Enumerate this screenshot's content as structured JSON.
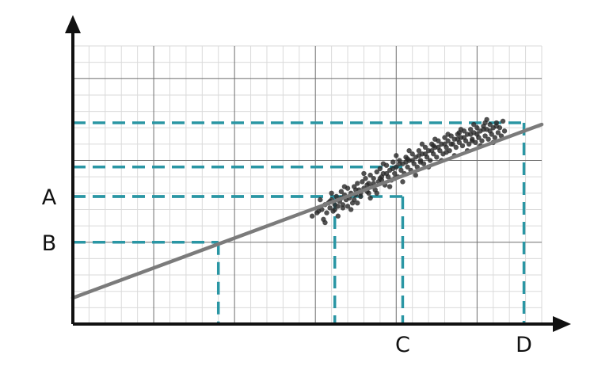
{
  "chart_data": {
    "type": "scatter",
    "title": "",
    "xlabel": "",
    "ylabel": "",
    "xlim": [
      0,
      29
    ],
    "ylim": [
      0,
      17
    ],
    "grid": true,
    "y_axis_labels": [
      "A",
      "B"
    ],
    "x_axis_labels": [
      "C",
      "D"
    ],
    "trend_line": {
      "x": [
        0,
        29
      ],
      "y": [
        1.6,
        12.2
      ]
    },
    "guides": [
      {
        "label": "B",
        "x": 9.0,
        "y": 5.0
      },
      {
        "label": "A",
        "x": 16.2,
        "y": 7.8
      },
      {
        "label": "C",
        "x": 20.4,
        "y": 7.8
      },
      {
        "label": "",
        "x": 20.4,
        "y": 9.6
      },
      {
        "label": "D",
        "x": 27.9,
        "y": 12.3
      }
    ],
    "points": [
      [
        14.8,
        6.6
      ],
      [
        15.2,
        6.9
      ],
      [
        15.4,
        7.0
      ],
      [
        15.5,
        6.4
      ],
      [
        15.6,
        7.3
      ],
      [
        15.7,
        6.8
      ],
      [
        15.8,
        7.4
      ],
      [
        15.9,
        7.1
      ],
      [
        16.0,
        7.6
      ],
      [
        16.1,
        6.9
      ],
      [
        16.2,
        7.3
      ],
      [
        16.3,
        7.8
      ],
      [
        16.4,
        7.2
      ],
      [
        16.5,
        7.5
      ],
      [
        16.6,
        8.1
      ],
      [
        16.7,
        7.3
      ],
      [
        16.8,
        7.9
      ],
      [
        16.9,
        7.6
      ],
      [
        17.0,
        8.3
      ],
      [
        17.1,
        7.7
      ],
      [
        17.2,
        8.0
      ],
      [
        17.3,
        7.4
      ],
      [
        17.4,
        8.4
      ],
      [
        17.5,
        7.9
      ],
      [
        17.6,
        8.6
      ],
      [
        17.7,
        8.2
      ],
      [
        17.8,
        7.8
      ],
      [
        17.9,
        8.7
      ],
      [
        18.0,
        8.3
      ],
      [
        18.1,
        8.9
      ],
      [
        18.2,
        8.1
      ],
      [
        18.3,
        8.6
      ],
      [
        18.4,
        9.1
      ],
      [
        18.5,
        8.4
      ],
      [
        18.6,
        8.9
      ],
      [
        18.7,
        8.2
      ],
      [
        18.8,
        9.3
      ],
      [
        18.9,
        8.7
      ],
      [
        19.0,
        9.5
      ],
      [
        19.1,
        8.8
      ],
      [
        19.2,
        9.2
      ],
      [
        19.3,
        8.5
      ],
      [
        19.4,
        9.7
      ],
      [
        19.5,
        9.0
      ],
      [
        19.6,
        9.4
      ],
      [
        19.7,
        8.8
      ],
      [
        19.8,
        9.9
      ],
      [
        19.9,
        9.2
      ],
      [
        20.0,
        9.6
      ],
      [
        20.1,
        9.0
      ],
      [
        20.2,
        10.0
      ],
      [
        20.3,
        9.4
      ],
      [
        20.4,
        9.8
      ],
      [
        20.5,
        9.2
      ],
      [
        20.6,
        10.2
      ],
      [
        20.7,
        9.6
      ],
      [
        20.8,
        10.0
      ],
      [
        20.9,
        9.4
      ],
      [
        21.0,
        10.4
      ],
      [
        21.1,
        9.8
      ],
      [
        21.2,
        10.2
      ],
      [
        21.3,
        9.6
      ],
      [
        21.4,
        10.6
      ],
      [
        21.5,
        10.0
      ],
      [
        21.6,
        10.4
      ],
      [
        21.7,
        9.8
      ],
      [
        21.8,
        10.8
      ],
      [
        21.9,
        10.2
      ],
      [
        22.0,
        10.6
      ],
      [
        22.1,
        10.0
      ],
      [
        22.2,
        11.0
      ],
      [
        22.3,
        10.4
      ],
      [
        22.4,
        10.8
      ],
      [
        22.5,
        10.2
      ],
      [
        22.6,
        11.2
      ],
      [
        22.7,
        10.6
      ],
      [
        22.8,
        11.0
      ],
      [
        22.9,
        10.4
      ],
      [
        23.0,
        11.4
      ],
      [
        23.1,
        10.8
      ],
      [
        23.2,
        11.2
      ],
      [
        23.3,
        10.6
      ],
      [
        23.4,
        11.5
      ],
      [
        23.5,
        11.0
      ],
      [
        23.6,
        11.3
      ],
      [
        23.7,
        10.8
      ],
      [
        23.8,
        11.6
      ],
      [
        23.9,
        11.1
      ],
      [
        24.0,
        11.4
      ],
      [
        24.1,
        10.9
      ],
      [
        24.2,
        11.8
      ],
      [
        24.3,
        11.2
      ],
      [
        24.4,
        11.6
      ],
      [
        24.5,
        11.0
      ],
      [
        24.6,
        11.9
      ],
      [
        24.7,
        11.3
      ],
      [
        24.8,
        11.7
      ],
      [
        24.9,
        11.1
      ],
      [
        25.0,
        12.0
      ],
      [
        25.1,
        11.4
      ],
      [
        25.2,
        11.8
      ],
      [
        25.3,
        11.2
      ],
      [
        25.4,
        12.1
      ],
      [
        25.5,
        11.5
      ],
      [
        25.6,
        11.9
      ],
      [
        25.7,
        11.3
      ],
      [
        25.8,
        12.2
      ],
      [
        25.9,
        11.6
      ],
      [
        26.0,
        12.0
      ],
      [
        26.1,
        11.4
      ],
      [
        26.2,
        12.3
      ],
      [
        26.3,
        11.7
      ],
      [
        26.4,
        12.0
      ],
      [
        26.5,
        11.5
      ],
      [
        26.6,
        12.4
      ],
      [
        26.7,
        11.8
      ],
      [
        15.3,
        7.6
      ],
      [
        15.6,
        6.2
      ],
      [
        16.0,
        8.0
      ],
      [
        16.4,
        6.6
      ],
      [
        16.8,
        8.4
      ],
      [
        17.2,
        7.0
      ],
      [
        17.6,
        7.4
      ],
      [
        18.0,
        9.2
      ],
      [
        18.4,
        7.7
      ],
      [
        18.8,
        8.0
      ],
      [
        19.2,
        9.8
      ],
      [
        19.6,
        8.4
      ],
      [
        20.0,
        10.3
      ],
      [
        20.4,
        8.7
      ],
      [
        20.8,
        10.6
      ],
      [
        21.2,
        9.1
      ],
      [
        21.6,
        11.0
      ],
      [
        22.0,
        9.6
      ],
      [
        22.4,
        11.3
      ],
      [
        22.8,
        10.0
      ],
      [
        23.2,
        11.6
      ],
      [
        23.6,
        10.3
      ],
      [
        24.0,
        11.9
      ],
      [
        24.4,
        10.6
      ],
      [
        24.8,
        12.2
      ],
      [
        25.2,
        10.9
      ],
      [
        25.6,
        12.5
      ],
      [
        26.0,
        11.1
      ],
      [
        16.2,
        7.0
      ],
      [
        17.0,
        7.2
      ],
      [
        17.8,
        8.0
      ],
      [
        18.6,
        8.6
      ],
      [
        19.4,
        9.2
      ],
      [
        20.2,
        9.8
      ],
      [
        21.0,
        10.0
      ],
      [
        21.8,
        10.4
      ],
      [
        22.6,
        10.8
      ],
      [
        23.4,
        11.0
      ],
      [
        24.2,
        11.4
      ],
      [
        25.0,
        11.6
      ],
      [
        25.8,
        11.8
      ],
      [
        16.6,
        7.7
      ],
      [
        17.4,
        7.6
      ],
      [
        18.2,
        8.5
      ],
      [
        19.0,
        8.9
      ],
      [
        19.8,
        9.5
      ],
      [
        20.6,
        9.9
      ],
      [
        21.4,
        10.3
      ],
      [
        22.2,
        10.6
      ],
      [
        23.0,
        11.0
      ],
      [
        23.8,
        11.3
      ],
      [
        24.6,
        11.6
      ],
      [
        25.4,
        11.9
      ],
      [
        26.2,
        12.1
      ],
      [
        15.1,
        6.8
      ],
      [
        15.9,
        7.5
      ],
      [
        16.7,
        7.1
      ],
      [
        17.5,
        8.2
      ],
      [
        18.3,
        8.0
      ],
      [
        19.1,
        9.0
      ],
      [
        19.9,
        8.9
      ],
      [
        20.7,
        10.1
      ],
      [
        21.5,
        9.9
      ],
      [
        22.3,
        10.9
      ],
      [
        23.1,
        10.5
      ],
      [
        23.9,
        11.7
      ],
      [
        24.7,
        11.2
      ],
      [
        25.5,
        12.3
      ]
    ]
  }
}
